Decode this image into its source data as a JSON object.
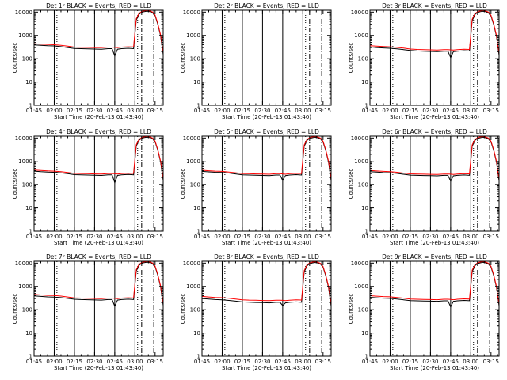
{
  "figure": {
    "colors": {
      "events": "#000000",
      "lld": "#ff0000",
      "background": "#ffffff"
    }
  },
  "shared": {
    "x_ticks": [
      "01:45",
      "02:00",
      "02:15",
      "02:30",
      "02:45",
      "03:00",
      "03:15"
    ],
    "x_tick_values_min": [
      0,
      15,
      30,
      45,
      60,
      75,
      90
    ],
    "x_range_min": [
      0,
      96
    ],
    "y_ticks": [
      "1",
      "10",
      "100",
      "1000",
      "10000"
    ],
    "y_tick_values": [
      1,
      10,
      100,
      1000,
      10000
    ],
    "y_range": [
      1,
      12000
    ],
    "y_scale": "log",
    "xlabel": "Start Time (20-Feb-13 01:43:40)",
    "ylabel": "Counts/sec",
    "solid_markers_min": [
      15,
      30,
      45,
      60,
      75
    ],
    "dotted_markers_min": [
      17,
      77
    ],
    "dashdot_markers_min": [
      80,
      89
    ]
  },
  "chart_data": [
    {
      "type": "line",
      "title": "Det 1r BLACK = Events, RED = LLD",
      "x_min": [
        0,
        5,
        10,
        15,
        20,
        25,
        30,
        35,
        40,
        45,
        50,
        55,
        58,
        60,
        62,
        65,
        70,
        74,
        76,
        78,
        80,
        82,
        84,
        86,
        88,
        90,
        92,
        94,
        96
      ],
      "series": [
        {
          "name": "Events",
          "values": [
            390,
            375,
            360,
            355,
            330,
            300,
            275,
            270,
            265,
            260,
            255,
            270,
            270,
            130,
            255,
            270,
            280,
            270,
            4500,
            8000,
            9800,
            10500,
            11000,
            10500,
            9500,
            7000,
            3000,
            1000,
            150
          ]
        },
        {
          "name": "LLD",
          "values": [
            440,
            425,
            410,
            400,
            375,
            345,
            315,
            310,
            305,
            300,
            300,
            315,
            315,
            310,
            300,
            315,
            325,
            320,
            5200,
            8800,
            10600,
            11400,
            11800,
            11200,
            10200,
            7500,
            3300,
            1100,
            180
          ]
        }
      ]
    },
    {
      "type": "line",
      "title": "Det 2r BLACK = Events, RED = LLD",
      "x_min": [],
      "series": [
        {
          "name": "Events",
          "values": []
        },
        {
          "name": "LLD",
          "values": []
        }
      ]
    },
    {
      "type": "line",
      "title": "Det 3r BLACK = Events, RED = LLD",
      "x_min": [
        0,
        5,
        10,
        15,
        20,
        25,
        30,
        35,
        40,
        45,
        50,
        55,
        58,
        60,
        62,
        65,
        70,
        74,
        76,
        78,
        80,
        82,
        84,
        86,
        88,
        90,
        92,
        94,
        96
      ],
      "series": [
        {
          "name": "Events",
          "values": [
            320,
            300,
            290,
            280,
            265,
            245,
            225,
            215,
            210,
            205,
            200,
            210,
            210,
            110,
            200,
            210,
            220,
            215,
            4200,
            7800,
            9600,
            10400,
            10900,
            10400,
            9400,
            6800,
            2900,
            950,
            140
          ]
        },
        {
          "name": "LLD",
          "values": [
            360,
            345,
            335,
            325,
            305,
            285,
            260,
            250,
            245,
            240,
            235,
            245,
            245,
            240,
            235,
            245,
            255,
            250,
            4900,
            8600,
            10400,
            11200,
            11700,
            11100,
            10100,
            7300,
            3200,
            1050,
            170
          ]
        }
      ]
    },
    {
      "type": "line",
      "title": "Det 4r BLACK = Events, RED = LLD",
      "x_min": [
        0,
        5,
        10,
        15,
        20,
        25,
        30,
        35,
        40,
        45,
        50,
        55,
        58,
        60,
        62,
        65,
        70,
        74,
        76,
        78,
        80,
        82,
        84,
        86,
        88,
        90,
        92,
        94,
        96
      ],
      "series": [
        {
          "name": "Events",
          "values": [
            380,
            360,
            345,
            340,
            320,
            295,
            270,
            265,
            260,
            255,
            250,
            265,
            265,
            120,
            250,
            265,
            275,
            265,
            4400,
            7900,
            9700,
            10400,
            10900,
            10400,
            9400,
            6900,
            2950,
            980,
            150
          ]
        },
        {
          "name": "LLD",
          "values": [
            425,
            405,
            390,
            380,
            360,
            335,
            305,
            300,
            295,
            290,
            285,
            300,
            300,
            295,
            285,
            300,
            310,
            305,
            5100,
            8700,
            10500,
            11300,
            11700,
            11100,
            10100,
            7400,
            3250,
            1080,
            175
          ]
        }
      ]
    },
    {
      "type": "line",
      "title": "Det 5r BLACK = Events, RED = LLD",
      "x_min": [
        0,
        5,
        10,
        15,
        20,
        25,
        30,
        35,
        40,
        45,
        50,
        55,
        58,
        60,
        62,
        65,
        70,
        74,
        76,
        78,
        80,
        82,
        84,
        86,
        88,
        90,
        92,
        94,
        96
      ],
      "series": [
        {
          "name": "Events",
          "values": [
            370,
            355,
            340,
            335,
            315,
            290,
            265,
            260,
            255,
            250,
            245,
            260,
            260,
            150,
            245,
            260,
            270,
            260,
            4300,
            7800,
            9600,
            10300,
            10800,
            10300,
            9300,
            6800,
            2900,
            960,
            145
          ]
        },
        {
          "name": "LLD",
          "values": [
            415,
            395,
            380,
            370,
            350,
            325,
            300,
            295,
            290,
            285,
            280,
            295,
            295,
            290,
            280,
            295,
            305,
            300,
            5000,
            8600,
            10400,
            11200,
            11600,
            11000,
            10000,
            7300,
            3200,
            1060,
            170
          ]
        }
      ]
    },
    {
      "type": "line",
      "title": "Det 6r BLACK = Events, RED = LLD",
      "x_min": [
        0,
        5,
        10,
        15,
        20,
        25,
        30,
        35,
        40,
        45,
        50,
        55,
        58,
        60,
        62,
        65,
        70,
        74,
        76,
        78,
        80,
        82,
        84,
        86,
        88,
        90,
        92,
        94,
        96
      ],
      "series": [
        {
          "name": "Events",
          "values": [
            360,
            345,
            330,
            325,
            305,
            280,
            258,
            252,
            248,
            244,
            240,
            252,
            252,
            140,
            240,
            252,
            262,
            252,
            4300,
            7800,
            9600,
            10300,
            10800,
            10300,
            9300,
            6800,
            2900,
            960,
            145
          ]
        },
        {
          "name": "LLD",
          "values": [
            405,
            385,
            370,
            360,
            340,
            315,
            292,
            286,
            282,
            278,
            274,
            286,
            286,
            282,
            274,
            286,
            296,
            290,
            5000,
            8600,
            10400,
            11200,
            11600,
            11000,
            10000,
            7300,
            3200,
            1060,
            170
          ]
        }
      ]
    },
    {
      "type": "line",
      "title": "Det 7r BLACK = Events, RED = LLD",
      "x_min": [
        0,
        5,
        10,
        15,
        20,
        25,
        30,
        35,
        40,
        45,
        50,
        55,
        58,
        60,
        62,
        65,
        70,
        74,
        76,
        78,
        80,
        82,
        84,
        86,
        88,
        90,
        92,
        94,
        96
      ],
      "series": [
        {
          "name": "Events",
          "values": [
            390,
            370,
            355,
            350,
            330,
            305,
            280,
            272,
            268,
            262,
            258,
            272,
            272,
            140,
            258,
            272,
            282,
            272,
            4500,
            8000,
            9800,
            10500,
            11000,
            10500,
            9500,
            7000,
            3000,
            1000,
            150
          ]
        },
        {
          "name": "LLD",
          "values": [
            450,
            430,
            412,
            405,
            382,
            352,
            322,
            314,
            308,
            302,
            298,
            314,
            314,
            308,
            298,
            314,
            325,
            318,
            5200,
            8800,
            10600,
            11400,
            11800,
            11200,
            10200,
            7500,
            3300,
            1100,
            180
          ]
        }
      ]
    },
    {
      "type": "line",
      "title": "Det 8r BLACK = Events, RED = LLD",
      "x_min": [
        0,
        5,
        10,
        15,
        20,
        25,
        30,
        35,
        40,
        45,
        50,
        55,
        58,
        60,
        62,
        65,
        70,
        74,
        76,
        78,
        80,
        82,
        84,
        86,
        88,
        90,
        92,
        94,
        96
      ],
      "series": [
        {
          "name": "Events",
          "values": [
            300,
            285,
            272,
            265,
            250,
            232,
            214,
            208,
            204,
            200,
            196,
            206,
            206,
            150,
            196,
            206,
            214,
            208,
            4100,
            7600,
            9400,
            10200,
            10700,
            10200,
            9200,
            6700,
            2850,
            940,
            140
          ]
        },
        {
          "name": "LLD",
          "values": [
            370,
            352,
            336,
            328,
            310,
            288,
            266,
            258,
            253,
            248,
            244,
            256,
            256,
            252,
            244,
            256,
            266,
            260,
            4800,
            8400,
            10200,
            11000,
            11500,
            10900,
            9900,
            7200,
            3150,
            1040,
            165
          ]
        }
      ]
    },
    {
      "type": "line",
      "title": "Det 9r BLACK = Events, RED = LLD",
      "x_min": [
        0,
        5,
        10,
        15,
        20,
        25,
        30,
        35,
        40,
        45,
        50,
        55,
        58,
        60,
        62,
        65,
        70,
        74,
        76,
        78,
        80,
        82,
        84,
        86,
        88,
        90,
        92,
        94,
        96
      ],
      "series": [
        {
          "name": "Events",
          "values": [
            340,
            325,
            312,
            305,
            288,
            266,
            246,
            240,
            236,
            232,
            228,
            240,
            240,
            130,
            228,
            240,
            250,
            242,
            4200,
            7700,
            9500,
            10300,
            10800,
            10300,
            9300,
            6800,
            2900,
            950,
            145
          ]
        },
        {
          "name": "LLD",
          "values": [
            400,
            380,
            365,
            356,
            336,
            312,
            288,
            281,
            276,
            271,
            267,
            281,
            281,
            276,
            267,
            281,
            292,
            285,
            4950,
            8500,
            10300,
            11100,
            11600,
            11000,
            10000,
            7300,
            3200,
            1050,
            170
          ]
        }
      ]
    }
  ]
}
